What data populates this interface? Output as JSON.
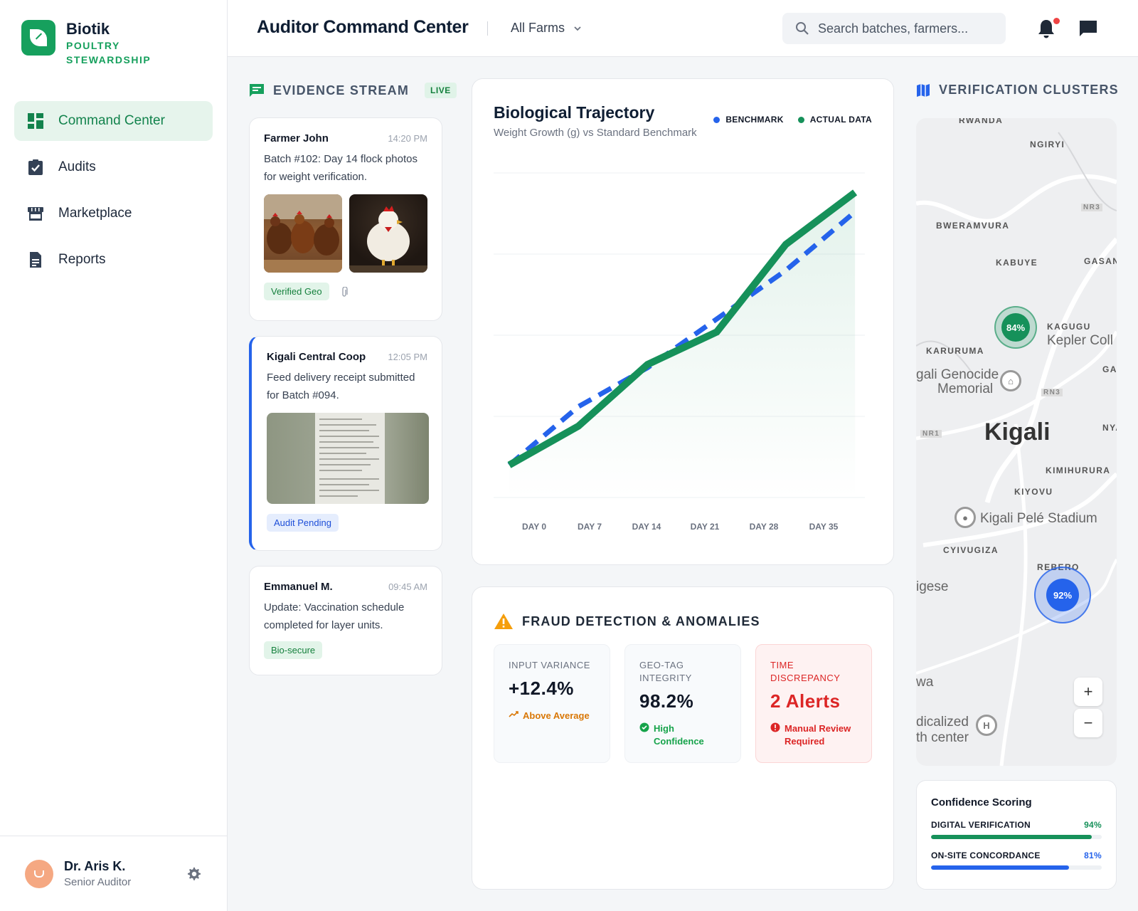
{
  "brand": {
    "name": "Biotik",
    "subtitle": "POULTRY STEWARDSHIP"
  },
  "nav": [
    {
      "label": "Command Center",
      "icon": "dashboard-icon",
      "active": true
    },
    {
      "label": "Audits",
      "icon": "clipboard-check-icon"
    },
    {
      "label": "Marketplace",
      "icon": "storefront-icon"
    },
    {
      "label": "Reports",
      "icon": "document-icon"
    }
  ],
  "user": {
    "name": "Dr. Aris K.",
    "role": "Senior Auditor"
  },
  "header": {
    "title": "Auditor Command Center",
    "farm_filter": "All Farms",
    "search_placeholder": "Search batches, farmers..."
  },
  "evidence": {
    "heading": "EVIDENCE STREAM",
    "live_badge": "LIVE",
    "items": [
      {
        "name": "Farmer John",
        "time": "14:20 PM",
        "body": "Batch #102: Day 14 flock photos for weight verification.",
        "tag": "Verified Geo"
      },
      {
        "name": "Kigali Central Coop",
        "time": "12:05 PM",
        "body": "Feed delivery receipt submitted for Batch #094.",
        "tag": "Audit Pending"
      },
      {
        "name": "Emmanuel M.",
        "time": "09:45 AM",
        "body": "Update: Vaccination schedule completed for layer units.",
        "tag": "Bio-secure"
      }
    ]
  },
  "chart": {
    "title": "Biological Trajectory",
    "subtitle": "Weight Growth (g) vs Standard Benchmark",
    "legend_benchmark": "BENCHMARK",
    "legend_actual": "ACTUAL DATA"
  },
  "chart_data": {
    "type": "line",
    "title": "Biological Trajectory",
    "subtitle": "Weight Growth (g) vs Standard Benchmark",
    "categories": [
      "DAY 0",
      "DAY 7",
      "DAY 14",
      "DAY 21",
      "DAY 28",
      "DAY 35"
    ],
    "x_points": [
      0,
      7,
      14,
      21,
      28,
      35
    ],
    "ylim": [
      0,
      100
    ],
    "grid": true,
    "legend_position": "top-right",
    "series": [
      {
        "name": "BENCHMARK",
        "style": "dashed",
        "color": "#2563eb",
        "values": [
          10,
          28,
          40,
          55,
          70,
          88
        ]
      },
      {
        "name": "ACTUAL DATA",
        "style": "solid",
        "color": "#16915a",
        "values": [
          10,
          22,
          41,
          51,
          78,
          94
        ]
      }
    ]
  },
  "fraud": {
    "heading": "FRAUD DETECTION & ANOMALIES",
    "metrics": [
      {
        "label": "INPUT VARIANCE",
        "value": "+12.4%",
        "note": "Above Average",
        "note_color": "#d97706"
      },
      {
        "label": "GEO-TAG INTEGRITY",
        "value": "98.2%",
        "note": "High Confidence",
        "note_color": "#16a34a"
      },
      {
        "label": "TIME DISCREPANCY",
        "value": "2 Alerts",
        "note": "Manual Review Required",
        "note_color": "#dc2626"
      }
    ]
  },
  "clusters": {
    "heading": "VERIFICATION CLUSTERS",
    "map": {
      "labels": [
        "RWANDA",
        "NGIRYI",
        "BWERAMVURA",
        "KABUYE",
        "GASAN",
        "KAGUGU",
        "KARURUMA",
        "GAC",
        "KIMIHURURA",
        "KIYOVU",
        "CYIVUGIZA",
        "REBERO",
        "NYA"
      ],
      "road_labels": [
        "NR3",
        "RN3",
        "NR1"
      ],
      "places": [
        "Kepler Coll",
        "gali Genocide",
        "Memorial",
        "Kigali Pelé Stadium",
        "igese",
        "wa",
        "dicalized",
        "th center"
      ],
      "city": "Kigali",
      "cluster_a": "84%",
      "cluster_b": "92%",
      "poi_h": "H"
    },
    "zoom_in": "+",
    "zoom_out": "−"
  },
  "confidence": {
    "title": "Confidence Scoring",
    "rows": [
      {
        "label": "DIGITAL VERIFICATION",
        "value": "94%",
        "fraction": 0.94,
        "color": "#16915a"
      },
      {
        "label": "ON-SITE CONCORDANCE",
        "value": "81%",
        "fraction": 0.81,
        "color": "#2563eb"
      }
    ]
  }
}
